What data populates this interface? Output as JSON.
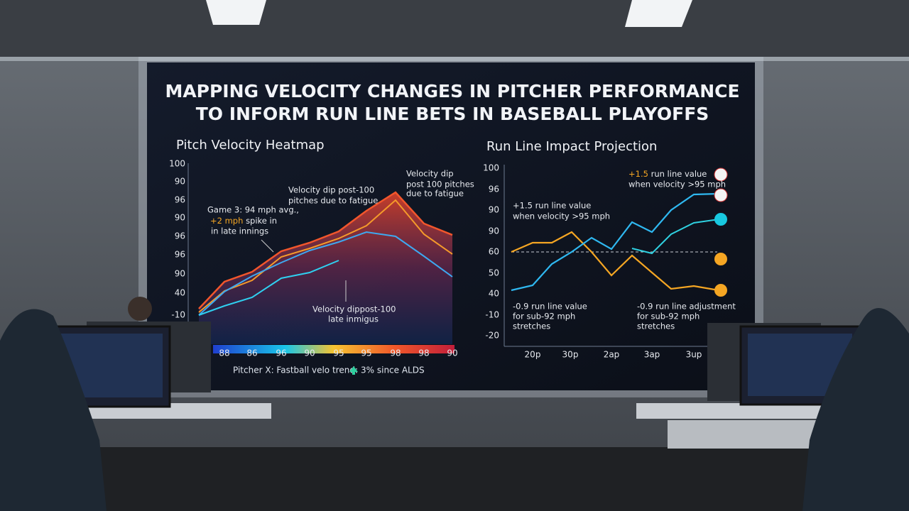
{
  "screen": {
    "title": [
      "MAPPING VELOCITY CHANGES IN PITCHER PERFORMANCE",
      "TO INFORM RUN LINE BETS IN BASEBALL PLAYOFFS"
    ],
    "left_panel": {
      "title": "Pitch Velocity Heatmap",
      "y_labels": [
        "100",
        "90",
        "96",
        "90",
        "96",
        "96",
        "90",
        "40",
        "-10"
      ],
      "x_labels": [
        "88",
        "86",
        "96",
        "90",
        "95",
        "95",
        "98",
        "98",
        "90"
      ],
      "annotations": {
        "game3": [
          "Game 3: 94 mph avg.,",
          "+2 mph",
          "spike in",
          "in late innings"
        ],
        "dip_mid": [
          "Velocity dip post-100",
          "pitches due to fatigue"
        ],
        "dip_top": [
          "Velocity dip",
          "post 100 pitches",
          "due to fatigue"
        ],
        "dip_low": [
          "Velocity dippost-100",
          "late inmigus"
        ]
      },
      "footer": {
        "label": "Pitcher X: Fastball velo trend:",
        "value": "3% since ALDS"
      }
    },
    "right_panel": {
      "title": "Run Line Impact Projection",
      "y_labels": [
        "100",
        "96",
        "90",
        "90",
        "60",
        "50",
        "40",
        "-10",
        "-20"
      ],
      "x_labels": [
        "20p",
        "30p",
        "2ap",
        "3ap",
        "3up"
      ],
      "annotations": {
        "left_top": [
          "+1.5 run line value",
          "when velocity >95 mph"
        ],
        "right_top": [
          "+1.5",
          "run line value",
          "when velocity >95 mph"
        ],
        "left_bottom": [
          "-0.9 run line value",
          "for sub-92 mph",
          "stretches"
        ],
        "right_bottom": [
          "-0.9 run line adjustment",
          "for sub-92 mph",
          "stretches"
        ]
      }
    }
  }
}
